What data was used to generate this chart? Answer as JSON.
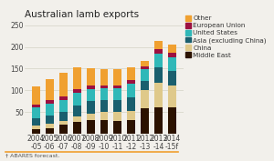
{
  "title": "Australian lamb exports",
  "footnote": "† ABARES forecast.",
  "categories": [
    "2004\n-05",
    "2005\n-06",
    "2006\n-07",
    "2007\n-08",
    "2008\n-09",
    "2009\n-10",
    "2010\n-11",
    "2011\n-12",
    "2012\n-13",
    "2013\n-14",
    "2014\n-15f"
  ],
  "series": {
    "Middle East": [
      10,
      12,
      20,
      28,
      32,
      32,
      30,
      32,
      58,
      60,
      60
    ],
    "China": [
      8,
      10,
      10,
      12,
      15,
      18,
      20,
      20,
      42,
      58,
      50
    ],
    "Asia (excluding China)": [
      18,
      20,
      20,
      25,
      28,
      28,
      28,
      32,
      22,
      35,
      35
    ],
    "United States": [
      25,
      28,
      28,
      30,
      28,
      26,
      26,
      32,
      26,
      32,
      32
    ],
    "European Union": [
      7,
      8,
      8,
      8,
      7,
      7,
      7,
      7,
      7,
      9,
      9
    ],
    "Other": [
      40,
      48,
      55,
      50,
      40,
      38,
      38,
      30,
      12,
      20,
      20
    ]
  },
  "colors": {
    "Middle East": "#2b1200",
    "China": "#dfc98a",
    "Asia (excluding China)": "#1a5f6e",
    "United States": "#30b8b8",
    "European Union": "#9c1040",
    "Other": "#f0a030"
  },
  "ylim": [
    0,
    260
  ],
  "yticks": [
    50,
    100,
    150,
    200,
    250
  ],
  "background_color": "#f2f0eb",
  "title_fontsize": 7.5,
  "tick_fontsize": 5.5,
  "legend_fontsize": 5.2
}
